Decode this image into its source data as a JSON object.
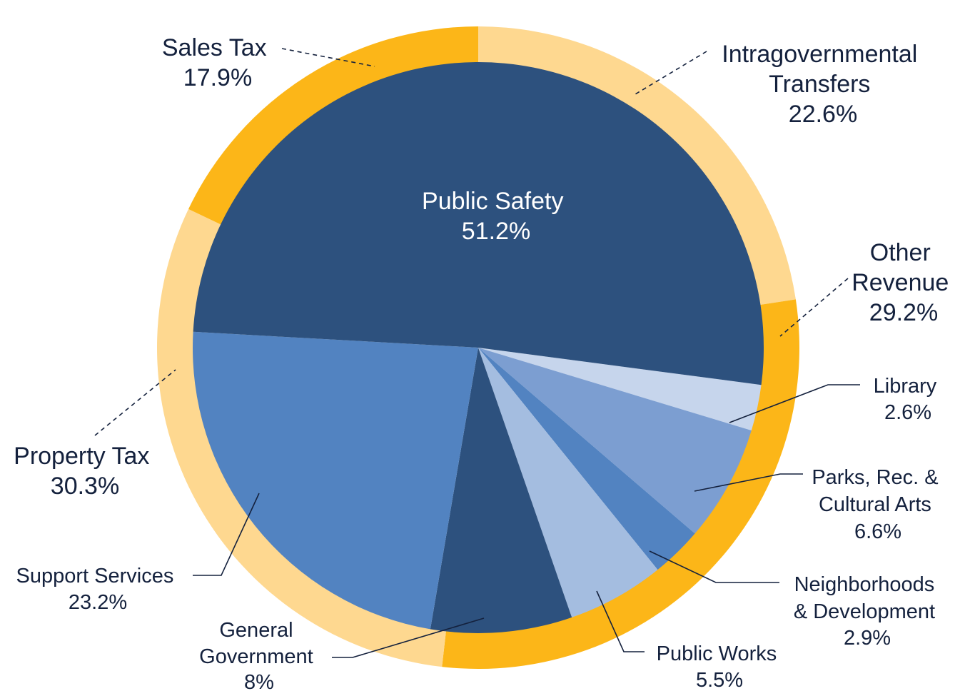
{
  "chart_data": {
    "type": "pie",
    "title": "",
    "rings": [
      {
        "name": "",
        "role": "outer",
        "slices": [
          {
            "label": "Intragovernmental Transfers",
            "value": 22.6,
            "pct_text": "22.6%",
            "color": "#fed890"
          },
          {
            "label": "Other Revenue",
            "value": 29.2,
            "pct_text": "29.2%",
            "color": "#fcb618"
          },
          {
            "label": "Property Tax",
            "value": 30.3,
            "pct_text": "30.3%",
            "color": "#fed890"
          },
          {
            "label": "Sales Tax",
            "value": 17.9,
            "pct_text": "17.9%",
            "color": "#fcb618"
          }
        ]
      },
      {
        "name": "",
        "role": "inner",
        "slices": [
          {
            "label": "Library",
            "value": 2.6,
            "pct_text": "2.6%",
            "color": "#c6d5ec"
          },
          {
            "label": "Parks, Rec. & Cultural Arts",
            "value": 6.6,
            "pct_text": "6.6%",
            "color": "#7c9ed1"
          },
          {
            "label": "Neighborhoods & Development",
            "value": 2.9,
            "pct_text": "2.9%",
            "color": "#5283c1"
          },
          {
            "label": "Public Works",
            "value": 5.5,
            "pct_text": "5.5%",
            "color": "#a4bde0"
          },
          {
            "label": "General Government",
            "value": 8,
            "pct_text": "8%",
            "color": "#2d517e"
          },
          {
            "label": "Support Services",
            "value": 23.2,
            "pct_text": "23.2%",
            "color": "#5283c1"
          },
          {
            "label": "Public Safety",
            "value": 51.2,
            "pct_text": "51.2%",
            "color": "#2d517e"
          }
        ]
      }
    ],
    "legend": "none"
  },
  "labels": {
    "sales_tax": {
      "lines": [
        "Sales Tax",
        "17.9%"
      ]
    },
    "intragov": {
      "lines": [
        "Intragovernmental",
        "Transfers",
        "22.6%"
      ]
    },
    "other_revenue": {
      "lines": [
        "Other",
        "Revenue",
        "29.2%"
      ]
    },
    "property_tax": {
      "lines": [
        "Property Tax",
        "30.3%"
      ]
    },
    "public_safety": {
      "lines": [
        "Public Safety",
        "51.2%"
      ]
    },
    "library": {
      "lines": [
        "Library",
        "2.6%"
      ]
    },
    "parks": {
      "lines": [
        "Parks, Rec. &",
        "Cultural Arts",
        "6.6%"
      ]
    },
    "neighborhoods": {
      "lines": [
        "Neighborhoods",
        "& Development",
        "2.9%"
      ]
    },
    "public_works": {
      "lines": [
        "Public Works",
        "5.5%"
      ]
    },
    "general_government": {
      "lines": [
        "General",
        "Government",
        "8%"
      ]
    },
    "support_services": {
      "lines": [
        "Support Services",
        "23.2%"
      ]
    }
  }
}
